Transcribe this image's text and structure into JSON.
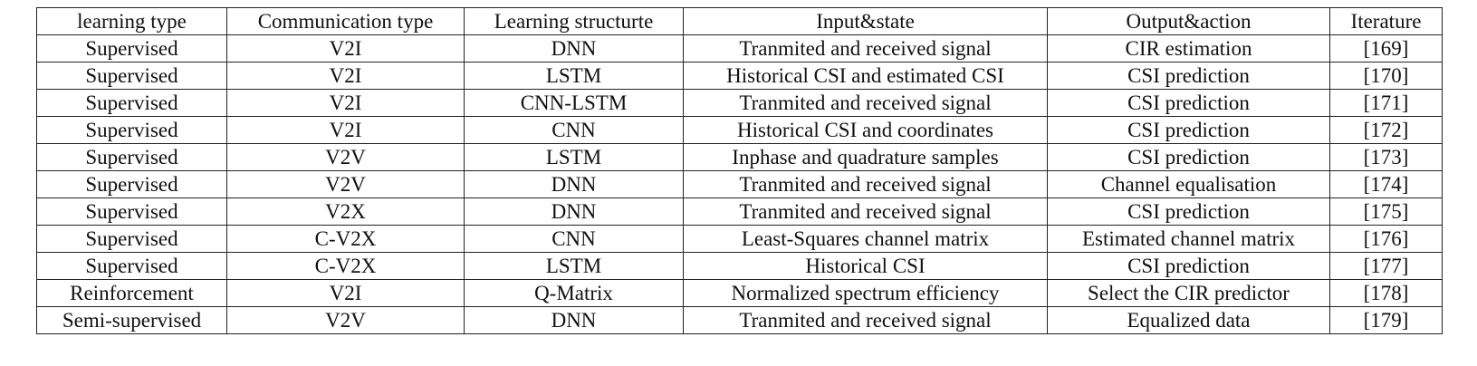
{
  "table": {
    "headers": [
      "learning type",
      "Communication type",
      "Learning structurte",
      "Input&state",
      "Output&action",
      "Iterature"
    ],
    "rows": [
      [
        "Supervised",
        "V2I",
        "DNN",
        "Tranmited and received signal",
        "CIR estimation",
        "[169]"
      ],
      [
        "Supervised",
        "V2I",
        "LSTM",
        "Historical CSI and estimated CSI",
        "CSI prediction",
        "[170]"
      ],
      [
        "Supervised",
        "V2I",
        "CNN-LSTM",
        "Tranmited and received signal",
        "CSI prediction",
        "[171]"
      ],
      [
        "Supervised",
        "V2I",
        "CNN",
        "Historical CSI and coordinates",
        "CSI prediction",
        "[172]"
      ],
      [
        "Supervised",
        "V2V",
        "LSTM",
        "Inphase and quadrature samples",
        "CSI prediction",
        "[173]"
      ],
      [
        "Supervised",
        "V2V",
        "DNN",
        "Tranmited and received signal",
        "Channel equalisation",
        "[174]"
      ],
      [
        "Supervised",
        "V2X",
        "DNN",
        "Tranmited and received signal",
        "CSI prediction",
        "[175]"
      ],
      [
        "Supervised",
        "C-V2X",
        "CNN",
        "Least-Squares channel matrix",
        "Estimated channel matrix",
        "[176]"
      ],
      [
        "Supervised",
        "C-V2X",
        "LSTM",
        "Historical CSI",
        "CSI prediction",
        "[177]"
      ],
      [
        "Reinforcement",
        "V2I",
        "Q-Matrix",
        "Normalized spectrum efficiency",
        "Select the CIR predictor",
        "[178]"
      ],
      [
        "Semi-supervised",
        "V2V",
        "DNN",
        "Tranmited and received signal",
        "Equalized data",
        "[179]"
      ]
    ]
  }
}
